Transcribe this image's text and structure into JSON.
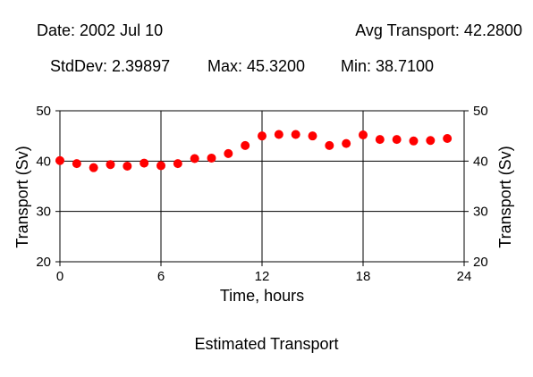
{
  "header": {
    "date": "Date: 2002 Jul 10",
    "avg": "Avg Transport: 42.2800",
    "stddev": "StdDev: 2.39897",
    "max": "Max: 45.3200",
    "min": "Min: 38.7100"
  },
  "caption": "Estimated Transport",
  "chart_data": {
    "type": "scatter",
    "title": "Estimated Transport",
    "xlabel": "Time, hours",
    "ylabel": "Transport (Sv)",
    "xlim": [
      0,
      24
    ],
    "ylim": [
      20,
      50
    ],
    "xticks": [
      0,
      6,
      12,
      18,
      24
    ],
    "yticks": [
      20,
      30,
      40,
      50
    ],
    "grid": true,
    "marker_color": "#ff0000",
    "series": [
      {
        "x": [
          0,
          1,
          2,
          3,
          4,
          5,
          6,
          7,
          8,
          9,
          10,
          11,
          12,
          13,
          14,
          15,
          16,
          17,
          18,
          19,
          20,
          21,
          22,
          23
        ],
        "y": [
          40.1,
          39.5,
          38.7,
          39.3,
          39.0,
          39.6,
          39.1,
          39.5,
          40.5,
          40.6,
          41.5,
          43.1,
          45.0,
          45.3,
          45.3,
          45.0,
          43.1,
          43.5,
          45.2,
          44.3,
          44.3,
          44.0,
          44.1,
          44.5
        ]
      }
    ]
  }
}
